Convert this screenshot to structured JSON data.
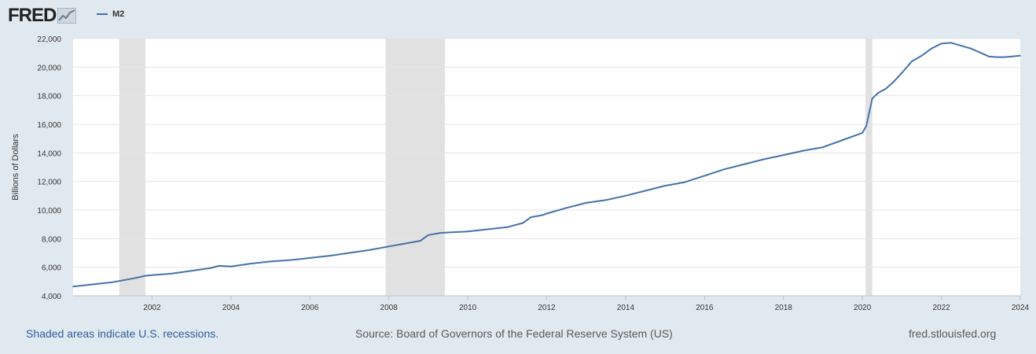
{
  "header": {
    "logo_text": "FRED",
    "logo_icon": "fred-chart-logo-icon",
    "legend_label": "M2"
  },
  "colors": {
    "series": "#4572a7",
    "recession": "#e1e1e1",
    "background": "#e1e9f0",
    "plot": "#ffffff"
  },
  "chart_data": {
    "type": "line",
    "title": "",
    "xlabel": "",
    "ylabel": "Billions of Dollars",
    "xlim": [
      2000.0,
      2024.0
    ],
    "ylim": [
      4000,
      22000
    ],
    "x_ticks": [
      2002,
      2004,
      2006,
      2008,
      2010,
      2012,
      2014,
      2016,
      2018,
      2020,
      2022,
      2024
    ],
    "y_ticks": [
      4000,
      6000,
      8000,
      10000,
      12000,
      14000,
      16000,
      18000,
      20000,
      22000
    ],
    "y_tick_labels": [
      "4,000",
      "6,000",
      "8,000",
      "10,000",
      "12,000",
      "14,000",
      "16,000",
      "18,000",
      "20,000",
      "22,000"
    ],
    "grid": "horizontal",
    "legend_position": "top-left",
    "recessions": [
      [
        2001.17,
        2001.83
      ],
      [
        2007.92,
        2009.42
      ],
      [
        2020.08,
        2020.25
      ]
    ],
    "series": [
      {
        "name": "M2",
        "x": [
          2000.0,
          2000.5,
          2001.0,
          2001.5,
          2001.83,
          2002.0,
          2002.5,
          2003.0,
          2003.5,
          2003.7,
          2004.0,
          2004.5,
          2005.0,
          2005.5,
          2006.0,
          2006.5,
          2007.0,
          2007.5,
          2008.0,
          2008.3,
          2008.6,
          2008.8,
          2009.0,
          2009.3,
          2009.6,
          2010.0,
          2010.5,
          2011.0,
          2011.4,
          2011.6,
          2011.9,
          2012.0,
          2012.5,
          2013.0,
          2013.5,
          2014.0,
          2014.5,
          2015.0,
          2015.5,
          2016.0,
          2016.5,
          2017.0,
          2017.5,
          2018.0,
          2018.5,
          2019.0,
          2019.5,
          2020.0,
          2020.1,
          2020.25,
          2020.4,
          2020.6,
          2020.8,
          2021.0,
          2021.25,
          2021.5,
          2021.75,
          2022.0,
          2022.25,
          2022.5,
          2022.75,
          2023.0,
          2023.2,
          2023.4,
          2023.6,
          2023.8,
          2024.0
        ],
        "values": [
          4650,
          4800,
          4950,
          5200,
          5400,
          5450,
          5550,
          5750,
          5950,
          6100,
          6050,
          6250,
          6400,
          6500,
          6650,
          6800,
          7000,
          7200,
          7450,
          7600,
          7750,
          7850,
          8250,
          8400,
          8450,
          8500,
          8650,
          8800,
          9100,
          9500,
          9650,
          9750,
          10150,
          10500,
          10700,
          11000,
          11350,
          11700,
          11950,
          12400,
          12850,
          13200,
          13550,
          13850,
          14150,
          14400,
          14900,
          15400,
          15900,
          17800,
          18200,
          18500,
          19000,
          19600,
          20400,
          20800,
          21300,
          21650,
          21700,
          21500,
          21300,
          21000,
          20750,
          20700,
          20700,
          20750,
          20800
        ]
      }
    ]
  },
  "footer": {
    "recession_note": "Shaded areas indicate U.S. recessions.",
    "source": "Source: Board of Governors of the Federal Reserve System (US)",
    "site": "fred.stlouisfed.org"
  }
}
